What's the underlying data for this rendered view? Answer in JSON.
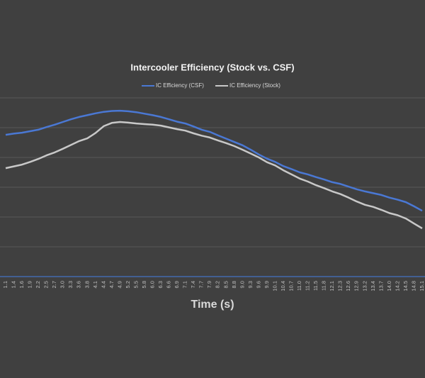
{
  "chart_data": {
    "type": "line",
    "title": "Intercooler Efficiency (Stock vs. CSF)",
    "x_label": "Time (s)",
    "categories": [
      "1.1",
      "1.4",
      "1.6",
      "1.9",
      "2.2",
      "2.5",
      "2.7",
      "3.0",
      "3.3",
      "3.6",
      "3.8",
      "4.1",
      "4.4",
      "4.7",
      "4.9",
      "5.2",
      "5.5",
      "5.8",
      "6.0",
      "6.3",
      "6.6",
      "6.9",
      "7.1",
      "7.4",
      "7.7",
      "7.9",
      "8.2",
      "8.5",
      "8.8",
      "9.0",
      "9.3",
      "9.6",
      "9.9",
      "10.1",
      "10.4",
      "10.7",
      "11.0",
      "11.2",
      "11.5",
      "11.8",
      "12.1",
      "12.3",
      "12.6",
      "12.9",
      "13.2",
      "13.4",
      "13.7",
      "14.0",
      "14.2",
      "14.5",
      "14.8",
      "15.1"
    ],
    "series": [
      {
        "name": "IC Efficiency (CSF)",
        "color": "#4a78d4",
        "values": [
          4.76,
          4.8,
          4.83,
          4.88,
          4.93,
          5.02,
          5.1,
          5.19,
          5.28,
          5.36,
          5.42,
          5.48,
          5.53,
          5.56,
          5.57,
          5.55,
          5.52,
          5.47,
          5.42,
          5.36,
          5.28,
          5.2,
          5.14,
          5.04,
          4.93,
          4.86,
          4.74,
          4.63,
          4.52,
          4.41,
          4.26,
          4.1,
          3.96,
          3.85,
          3.71,
          3.61,
          3.5,
          3.43,
          3.34,
          3.26,
          3.17,
          3.11,
          3.02,
          2.93,
          2.86,
          2.8,
          2.74,
          2.65,
          2.58,
          2.5,
          2.36,
          2.21
        ]
      },
      {
        "name": "IC Efficiency (Stock)",
        "color": "#c8c8c8",
        "values": [
          3.64,
          3.7,
          3.76,
          3.85,
          3.95,
          4.07,
          4.17,
          4.29,
          4.42,
          4.55,
          4.64,
          4.82,
          5.05,
          5.16,
          5.19,
          5.17,
          5.14,
          5.12,
          5.1,
          5.07,
          5.01,
          4.95,
          4.9,
          4.81,
          4.73,
          4.67,
          4.57,
          4.48,
          4.38,
          4.26,
          4.13,
          4.0,
          3.84,
          3.73,
          3.57,
          3.43,
          3.29,
          3.19,
          3.07,
          2.97,
          2.86,
          2.77,
          2.65,
          2.52,
          2.41,
          2.34,
          2.24,
          2.13,
          2.06,
          1.95,
          1.78,
          1.62
        ]
      }
    ],
    "ylim": [
      0,
      6
    ],
    "grid": true,
    "grid_values": [
      1,
      2,
      3,
      4,
      5,
      6
    ],
    "axis_color": "#4472c4"
  }
}
